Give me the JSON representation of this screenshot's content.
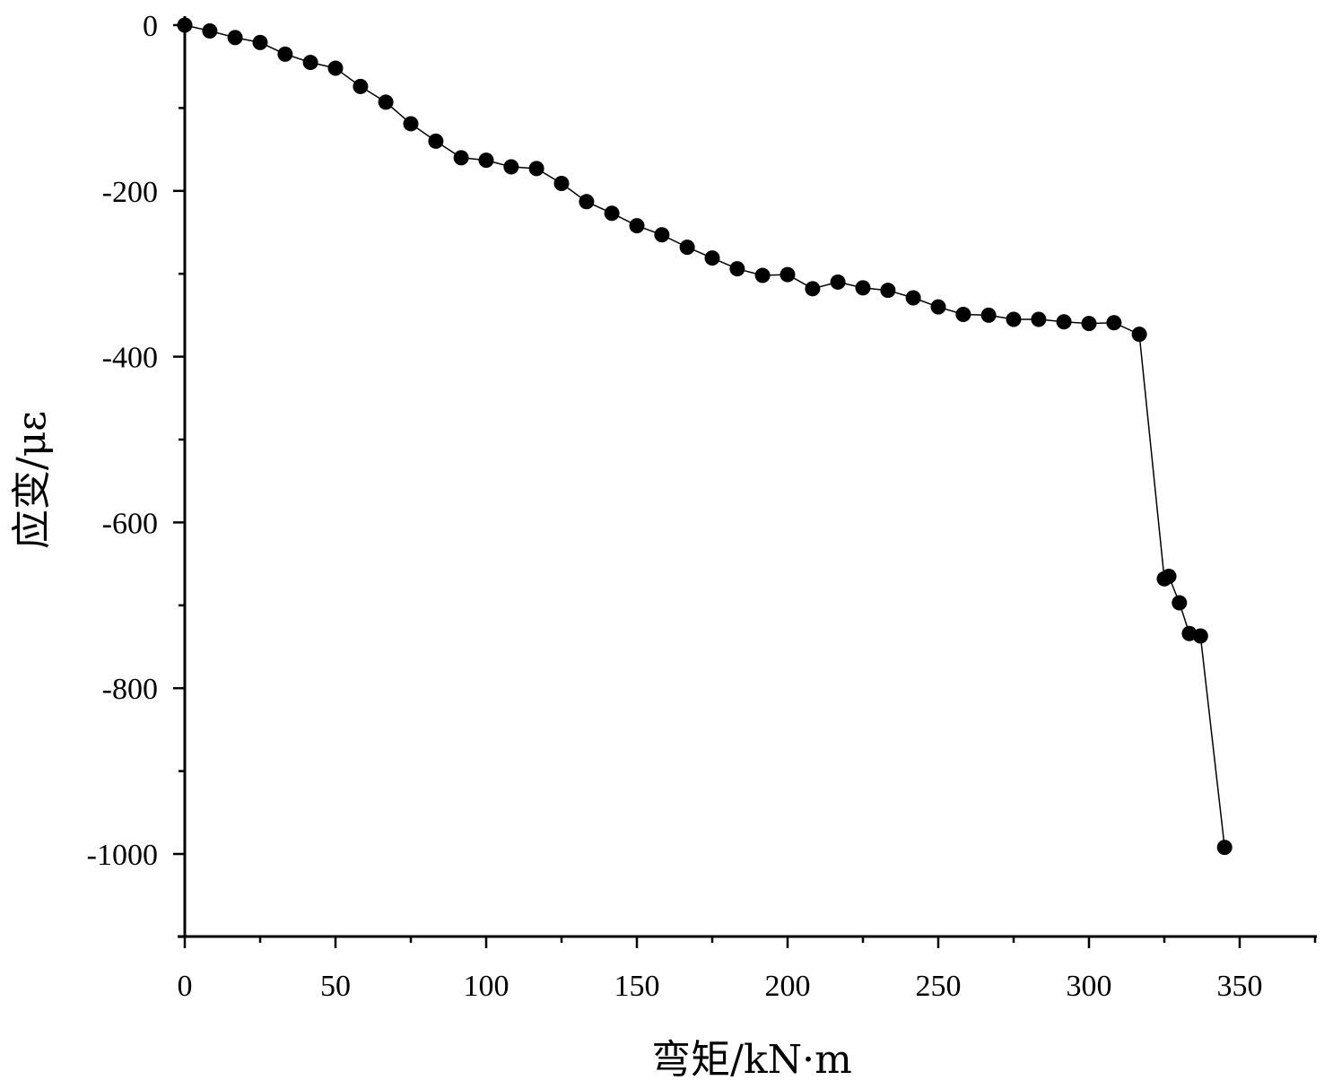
{
  "chart_data": {
    "type": "scatter",
    "xlabel": "弯矩/kN·m",
    "ylabel": "应变/με",
    "xlim": [
      0,
      375
    ],
    "ylim": [
      -1100,
      0
    ],
    "x_ticks": [
      0,
      50,
      100,
      150,
      200,
      250,
      300,
      350
    ],
    "x_tick_labels": [
      "0",
      "50",
      "100",
      "150",
      "200",
      "250",
      "300",
      "350"
    ],
    "y_ticks": [
      0,
      -200,
      -400,
      -600,
      -800,
      -1000
    ],
    "y_tick_labels": [
      "0",
      "-200",
      "-400",
      "-600",
      "-800",
      "-1000"
    ],
    "grid": false,
    "series": [
      {
        "marker": "filled-circle",
        "line": "solid-thin",
        "color": "#000000",
        "x": [
          0,
          8.3,
          16.7,
          25,
          33.3,
          41.7,
          50,
          58.3,
          66.7,
          75,
          83.3,
          91.7,
          100,
          108.3,
          116.7,
          125,
          133.3,
          141.7,
          150,
          158.3,
          166.7,
          175,
          183.3,
          191.7,
          200,
          208.3,
          216.7,
          225,
          233.3,
          241.7,
          250,
          258.3,
          266.7,
          275,
          283.3,
          291.7,
          300,
          308.3,
          316.7,
          325,
          326.5,
          330,
          333.3,
          337,
          345
        ],
        "y": [
          0,
          -7,
          -15,
          -21,
          -35,
          -45,
          -52,
          -74,
          -93,
          -119,
          -140,
          -160,
          -163,
          -171,
          -173,
          -191,
          -213,
          -227,
          -242,
          -253,
          -268,
          -281,
          -294,
          -302,
          -301,
          -318,
          -310,
          -317,
          -320,
          -329,
          -340,
          -349,
          -350,
          -355,
          -355,
          -358,
          -360,
          -359,
          -373,
          -668,
          -665,
          -697,
          -734,
          -737,
          -992
        ]
      }
    ]
  }
}
